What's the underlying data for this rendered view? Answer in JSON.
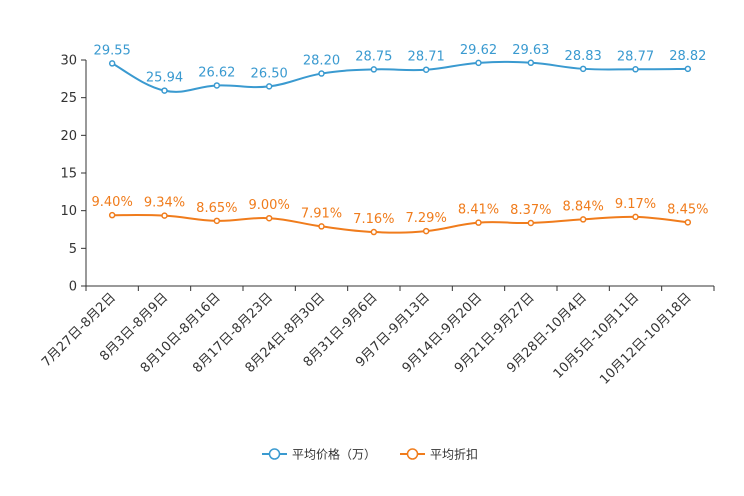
{
  "chart_data": {
    "type": "line",
    "title": "",
    "xlabel": "",
    "ylabel": "",
    "ylim": [
      0,
      30
    ],
    "yticks": [
      0,
      5,
      10,
      15,
      20,
      25,
      30
    ],
    "grid": false,
    "legend_position": "bottom-center",
    "categories": [
      "7月27日-8月2日",
      "8月3日-8月9日",
      "8月10日-8月16日",
      "8月17日-8月23日",
      "8月24日-8月30日",
      "8月31日-9月6日",
      "9月7日-9月13日",
      "9月14日-9月20日",
      "9月21日-9月27日",
      "9月28日-10月4日",
      "10月5日-10月11日",
      "10月12日-10月18日"
    ],
    "series": [
      {
        "name": "平均价格（万）",
        "color": "#3a9ad0",
        "values": [
          29.55,
          25.94,
          26.62,
          26.5,
          28.2,
          28.75,
          28.71,
          29.62,
          29.63,
          28.83,
          28.77,
          28.82
        ],
        "labels": [
          "29.55",
          "25.94",
          "26.62",
          "26.50",
          "28.20",
          "28.75",
          "28.71",
          "29.62",
          "29.63",
          "28.83",
          "28.77",
          "28.82"
        ]
      },
      {
        "name": "平均折扣",
        "color": "#f07c1c",
        "values": [
          9.4,
          9.34,
          8.65,
          9.0,
          7.91,
          7.16,
          7.29,
          8.41,
          8.37,
          8.84,
          9.17,
          8.45
        ],
        "labels": [
          "9.40%",
          "9.34%",
          "8.65%",
          "9.00%",
          "7.91%",
          "7.16%",
          "7.29%",
          "8.41%",
          "8.37%",
          "8.84%",
          "9.17%",
          "8.45%"
        ]
      }
    ]
  }
}
